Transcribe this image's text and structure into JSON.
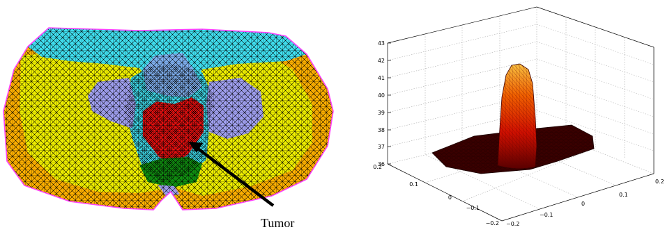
{
  "mesh_panel": {
    "annotation": "Tumor",
    "colors": {
      "outline": "#ff40ff",
      "outer_tissue": "#ffb000",
      "fat_layer": "#f0f000",
      "muscle": "#40e0f0",
      "organ": "#a0a0f0",
      "bladder": "#80b0f0",
      "tumor": "#f01010",
      "lower_organ": "#109010",
      "mesh_lines": "#000000"
    }
  },
  "chart_data": {
    "type": "surface",
    "title": "",
    "zticks": [
      "36",
      "37",
      "38",
      "39",
      "40",
      "41",
      "42",
      "43"
    ],
    "zlim": [
      36,
      43
    ],
    "xticks": [
      "0.2",
      "0.1",
      "0",
      "−0.1",
      "−0.2"
    ],
    "yticks": [
      "−0.2",
      "−0.1",
      "0",
      "0.1",
      "0.2"
    ],
    "colormap": [
      "#3a0000",
      "#8a0000",
      "#d01000",
      "#f04000",
      "#f08000",
      "#f8c040"
    ],
    "peak_value": 42.1,
    "base_value": 36.4,
    "grid": true
  }
}
